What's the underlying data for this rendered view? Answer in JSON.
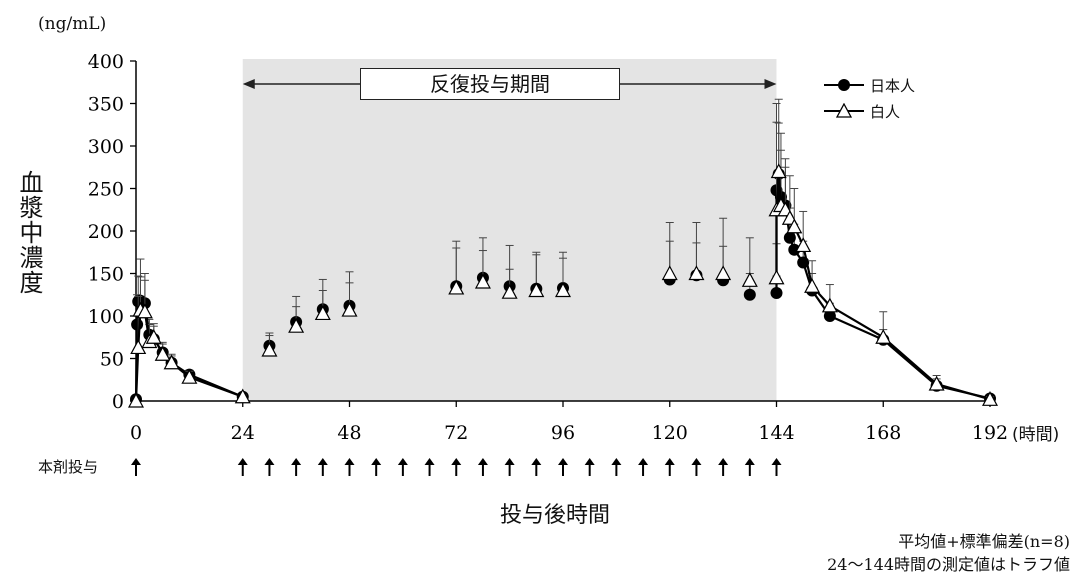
{
  "chart_data": {
    "type": "line",
    "ylabel": "血漿中濃度",
    "yunit": "(ng/mL)",
    "xlabel": "投与後時間",
    "xunit": "(時間)",
    "ylim": [
      0,
      400
    ],
    "yticks": [
      0,
      50,
      100,
      150,
      200,
      250,
      300,
      350,
      400
    ],
    "xlim": [
      0,
      192
    ],
    "xticks": [
      0,
      24,
      48,
      72,
      96,
      120,
      144,
      168,
      192
    ],
    "shaded_region": {
      "x": [
        24,
        144
      ],
      "label": "反復投与期間"
    },
    "dose_label": "本剤投与",
    "dose_times": [
      0,
      24,
      30,
      36,
      42,
      48,
      54,
      60,
      66,
      72,
      78,
      84,
      90,
      96,
      102,
      108,
      114,
      120,
      126,
      132,
      138,
      144
    ],
    "series": [
      {
        "name": "日本人",
        "marker": "filled-circle",
        "color": "#000000",
        "x": [
          0,
          0.25,
          0.5,
          1,
          2,
          3,
          4,
          6,
          8,
          12,
          24
        ],
        "y": [
          2,
          90,
          117,
          118,
          115,
          78,
          73,
          57,
          45,
          31,
          5
        ],
        "sd": [
          0,
          35,
          30,
          28,
          27,
          18,
          15,
          12,
          8,
          5,
          2
        ],
        "trough_x": [
          30,
          36,
          42,
          48,
          72,
          78,
          84,
          90,
          96,
          120,
          126,
          132,
          138,
          144
        ],
        "trough_y": [
          65,
          93,
          108,
          112,
          135,
          145,
          135,
          132,
          133,
          143,
          148,
          142,
          125,
          127
        ],
        "trough_sd": [
          12,
          18,
          22,
          27,
          45,
          32,
          20,
          40,
          35,
          45,
          38,
          40,
          25,
          20
        ],
        "post_x": [
          144,
          144.5,
          145,
          146,
          147,
          148,
          150,
          152,
          156,
          168,
          180,
          192
        ],
        "post_y": [
          248,
          267,
          240,
          230,
          192,
          178,
          163,
          130,
          100,
          72,
          18,
          3
        ],
        "post_sd": [
          80,
          60,
          55,
          45,
          35,
          30,
          25,
          20,
          15,
          12,
          8,
          3
        ],
        "post_y_tail": [
          0
        ]
      },
      {
        "name": "白人",
        "marker": "open-triangle",
        "color": "#000000",
        "x": [
          0,
          0.5,
          1,
          2,
          3,
          4,
          6,
          8,
          12,
          24
        ],
        "y": [
          0,
          63,
          107,
          105,
          70,
          75,
          55,
          45,
          28,
          5
        ],
        "sd": [
          0,
          60,
          60,
          45,
          20,
          16,
          12,
          10,
          7,
          2
        ],
        "trough_x": [
          30,
          36,
          42,
          48,
          72,
          78,
          84,
          90,
          96,
          120,
          126,
          132,
          138,
          144
        ],
        "trough_y": [
          60,
          88,
          103,
          107,
          133,
          140,
          128,
          130,
          130,
          150,
          150,
          150,
          142,
          145
        ],
        "trough_sd": [
          20,
          35,
          40,
          45,
          55,
          52,
          55,
          45,
          45,
          60,
          60,
          65,
          50,
          40
        ],
        "post_x": [
          144,
          144.5,
          145,
          146,
          147,
          148,
          150,
          152,
          156,
          168,
          180,
          192
        ],
        "post_y": [
          225,
          270,
          230,
          225,
          215,
          205,
          183,
          135,
          112,
          75,
          20,
          2
        ],
        "post_sd": [
          125,
          85,
          85,
          60,
          50,
          45,
          40,
          30,
          25,
          30,
          10,
          3
        ]
      }
    ]
  },
  "text": {
    "yunit": "(ng/mL)",
    "ylabel": "血漿中濃度",
    "xunit": "(時間)",
    "xlabel": "投与後時間",
    "dose_label": "本剤投与",
    "period_label": "反復投与期間",
    "legend_japanese": "日本人",
    "legend_caucasian": "白人",
    "note1": "平均値+標準偏差(n=8)",
    "note2": "24〜144時間の測定値はトラフ値"
  }
}
